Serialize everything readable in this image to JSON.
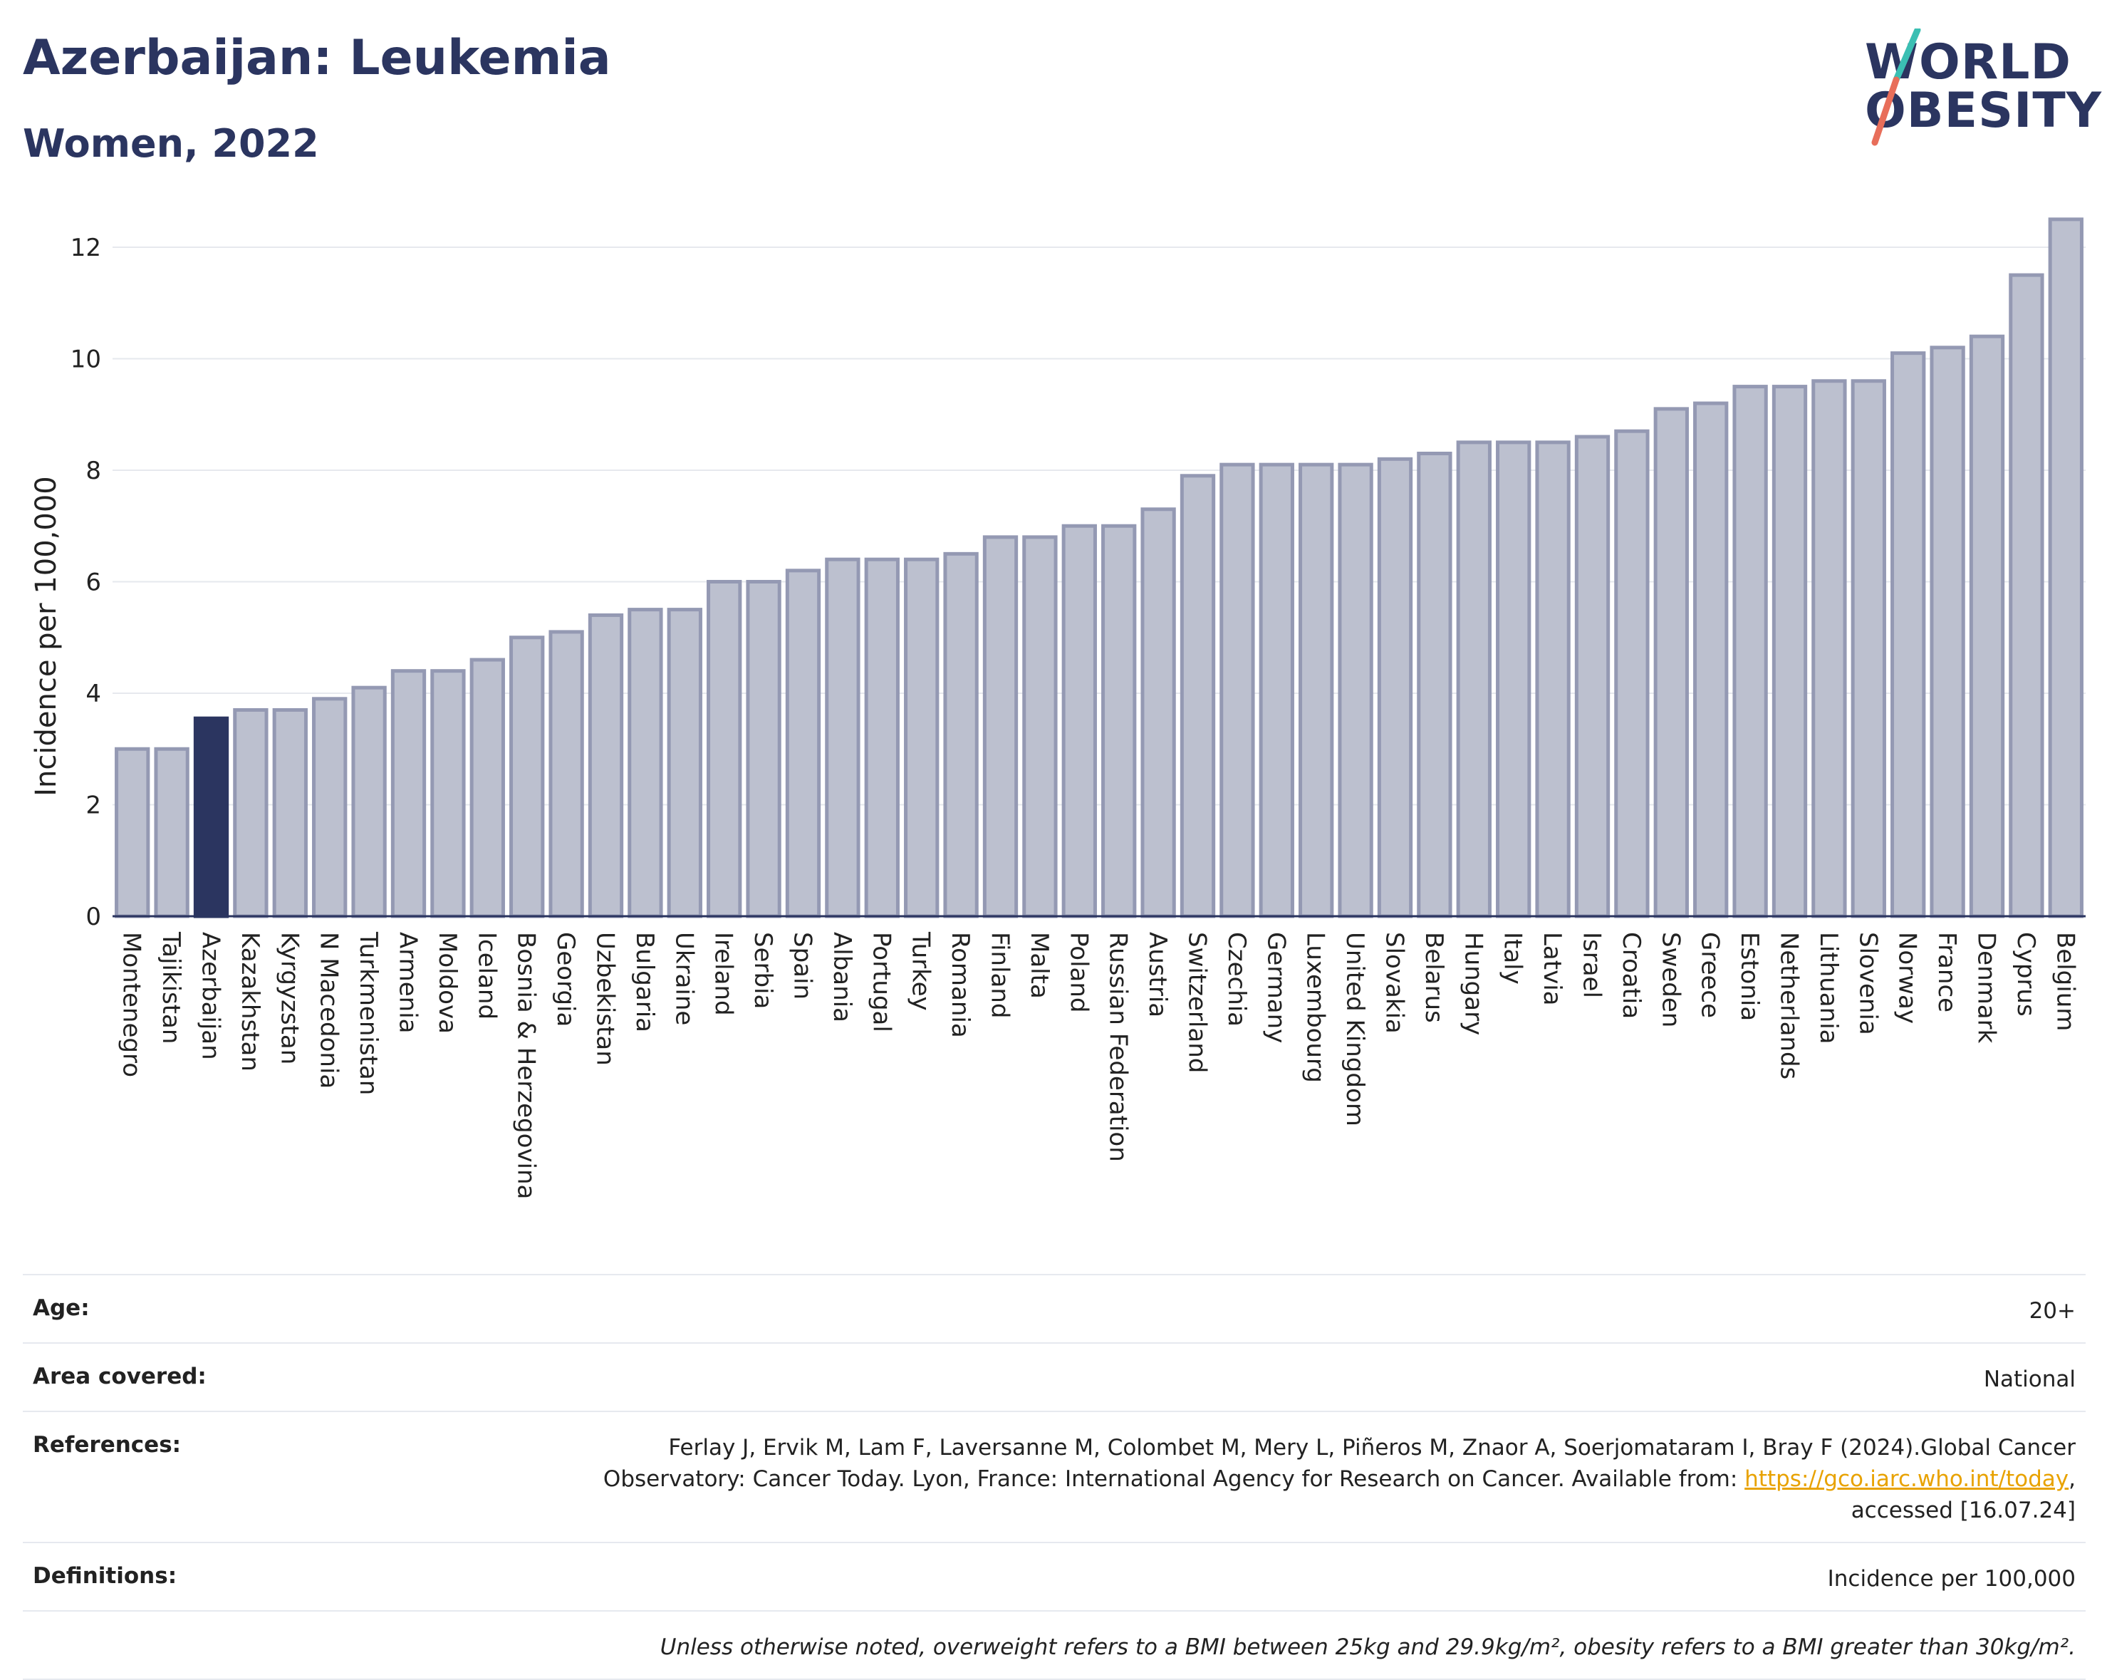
{
  "header": {
    "title": "Azerbaijan: Leukemia",
    "subtitle": "Women, 2022"
  },
  "logo": {
    "line1": "WORLD",
    "line2": "OBESITY",
    "colors": {
      "text": "#2b3560",
      "slash_top": "#3bbfb3",
      "slash_bottom": "#e86e5a"
    }
  },
  "chart_data": {
    "type": "bar",
    "ylabel": "Incidence per 100,000",
    "ylim": [
      0,
      12.6
    ],
    "yticks": [
      0,
      2,
      4,
      6,
      8,
      10,
      12
    ],
    "grid": true,
    "highlight": "Azerbaijan",
    "colors": {
      "bar": "#bcc0cf",
      "bar_border": "#9499b3",
      "highlight": "#2b3560",
      "grid": "#e6e8ee"
    },
    "categories": [
      "Montenegro",
      "Tajikistan",
      "Azerbaijan",
      "Kazakhstan",
      "Kyrgyzstan",
      "N Macedonia",
      "Turkmenistan",
      "Armenia",
      "Moldova",
      "Iceland",
      "Bosnia & Herzegovina",
      "Georgia",
      "Uzbekistan",
      "Bulgaria",
      "Ukraine",
      "Ireland",
      "Serbia",
      "Spain",
      "Albania",
      "Portugal",
      "Turkey",
      "Romania",
      "Finland",
      "Malta",
      "Poland",
      "Russian Federation",
      "Austria",
      "Switzerland",
      "Czechia",
      "Germany",
      "Luxembourg",
      "United Kingdom",
      "Slovakia",
      "Belarus",
      "Hungary",
      "Italy",
      "Latvia",
      "Israel",
      "Croatia",
      "Sweden",
      "Greece",
      "Estonia",
      "Netherlands",
      "Lithuania",
      "Slovenia",
      "Norway",
      "France",
      "Denmark",
      "Cyprus",
      "Belgium"
    ],
    "values": [
      3.0,
      3.0,
      3.55,
      3.7,
      3.7,
      3.9,
      4.1,
      4.4,
      4.4,
      4.6,
      5.0,
      5.1,
      5.4,
      5.5,
      5.5,
      6.0,
      6.0,
      6.2,
      6.4,
      6.4,
      6.4,
      6.5,
      6.8,
      6.8,
      7.0,
      7.0,
      7.3,
      7.9,
      8.1,
      8.1,
      8.1,
      8.1,
      8.2,
      8.3,
      8.5,
      8.5,
      8.5,
      8.6,
      8.7,
      9.1,
      9.2,
      9.5,
      9.5,
      9.6,
      9.6,
      10.1,
      10.2,
      10.4,
      11.5,
      12.5
    ]
  },
  "meta": {
    "age_label": "Age:",
    "age_value": "20+",
    "area_label": "Area covered:",
    "area_value": "National",
    "references_label": "References:",
    "references_line1": "Ferlay J, Ervik M, Lam F, Laversanne M, Colombet M, Mery L, Piñeros M, Znaor A, Soerjomataram I, Bray F (2024).Global Cancer",
    "references_line2_pre": "Observatory: Cancer Today. Lyon, France: International Agency for Research on Cancer. Available from:",
    "references_link": "https://gco.iarc.who.int/today",
    "references_line2_post": ",",
    "references_line3": "accessed [16.07.24]",
    "definitions_label": "Definitions:",
    "definitions_value": "Incidence per 100,000",
    "note": "Unless otherwise noted, overweight refers to a BMI between 25kg and 29.9kg/m², obesity refers to a BMI greater than 30kg/m²."
  }
}
